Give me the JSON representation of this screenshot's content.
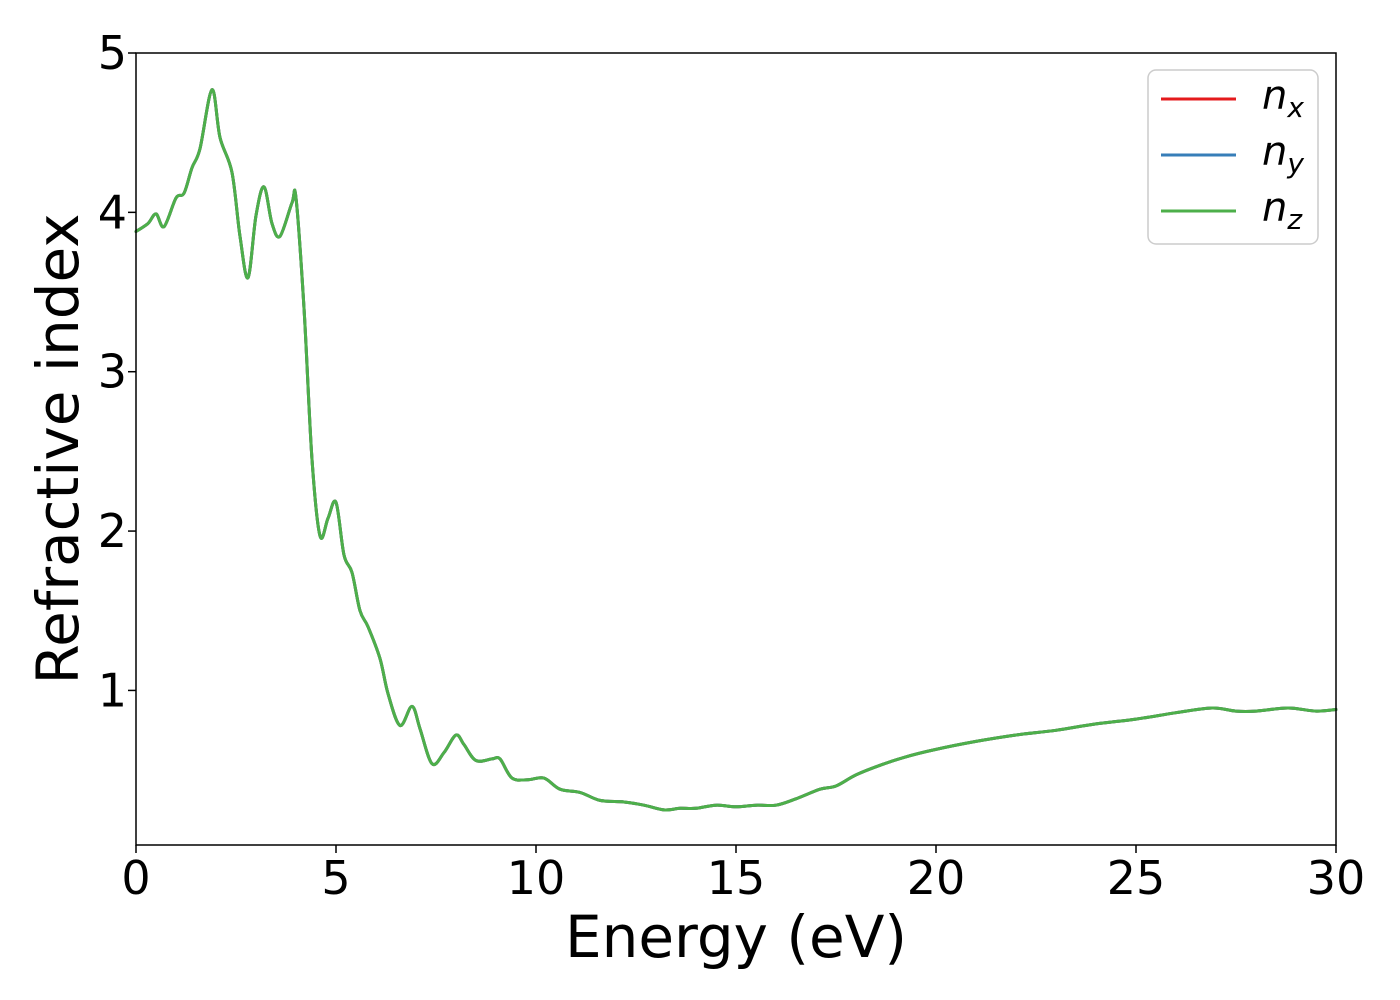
{
  "chart_data": {
    "type": "line",
    "xlabel": "Energy (eV)",
    "ylabel": "Refractive index",
    "xlim": [
      0,
      30
    ],
    "ylim": [
      0.03,
      5
    ],
    "xticks": [
      0,
      5,
      10,
      15,
      20,
      25,
      30
    ],
    "yticks": [
      1,
      2,
      3,
      4,
      5
    ],
    "grid": false,
    "legend_position": "top-right",
    "legend": [
      {
        "base": "n",
        "sub": "x",
        "color": "#e41a1c"
      },
      {
        "base": "n",
        "sub": "y",
        "color": "#377eb8"
      },
      {
        "base": "n",
        "sub": "z",
        "color": "#4daf4a"
      }
    ],
    "x": [
      0,
      0.3,
      0.5,
      0.7,
      1.0,
      1.2,
      1.4,
      1.6,
      1.9,
      2.1,
      2.4,
      2.6,
      2.8,
      3.0,
      3.2,
      3.4,
      3.6,
      3.9,
      4.0,
      4.2,
      4.4,
      4.6,
      4.8,
      5.0,
      5.2,
      5.4,
      5.6,
      5.8,
      6.1,
      6.3,
      6.6,
      6.9,
      7.1,
      7.4,
      7.7,
      8.0,
      8.2,
      8.5,
      8.9,
      9.1,
      9.4,
      9.8,
      10.2,
      10.6,
      11.1,
      11.6,
      12.2,
      12.7,
      13.2,
      13.6,
      14.0,
      14.5,
      15.0,
      15.5,
      16.0,
      16.5,
      17.1,
      17.5,
      18.0,
      18.6,
      19.2,
      20.0,
      21.0,
      22.0,
      23.0,
      24.0,
      25.0,
      26.0,
      26.9,
      27.5,
      28.0,
      28.8,
      29.5,
      30.0
    ],
    "series": [
      {
        "values": [
          3.88,
          3.93,
          3.99,
          3.91,
          4.09,
          4.12,
          4.28,
          4.4,
          4.77,
          4.47,
          4.25,
          3.85,
          3.59,
          3.98,
          4.16,
          3.93,
          3.85,
          4.06,
          4.09,
          3.4,
          2.45,
          1.97,
          2.08,
          2.18,
          1.85,
          1.74,
          1.5,
          1.4,
          1.2,
          0.98,
          0.78,
          0.9,
          0.76,
          0.54,
          0.61,
          0.72,
          0.66,
          0.56,
          0.57,
          0.57,
          0.45,
          0.44,
          0.45,
          0.38,
          0.36,
          0.31,
          0.3,
          0.28,
          0.25,
          0.26,
          0.26,
          0.28,
          0.27,
          0.28,
          0.28,
          0.32,
          0.38,
          0.4,
          0.47,
          0.53,
          0.58,
          0.63,
          0.68,
          0.72,
          0.75,
          0.79,
          0.82,
          0.86,
          0.89,
          0.87,
          0.87,
          0.89,
          0.87,
          0.88
        ]
      },
      {
        "values": [
          3.88,
          3.93,
          3.99,
          3.91,
          4.09,
          4.12,
          4.28,
          4.4,
          4.77,
          4.47,
          4.25,
          3.85,
          3.59,
          3.98,
          4.16,
          3.93,
          3.85,
          4.06,
          4.09,
          3.4,
          2.45,
          1.97,
          2.08,
          2.18,
          1.85,
          1.74,
          1.5,
          1.4,
          1.2,
          0.98,
          0.78,
          0.9,
          0.76,
          0.54,
          0.61,
          0.72,
          0.66,
          0.56,
          0.57,
          0.57,
          0.45,
          0.44,
          0.45,
          0.38,
          0.36,
          0.31,
          0.3,
          0.28,
          0.25,
          0.26,
          0.26,
          0.28,
          0.27,
          0.28,
          0.28,
          0.32,
          0.38,
          0.4,
          0.47,
          0.53,
          0.58,
          0.63,
          0.68,
          0.72,
          0.75,
          0.79,
          0.82,
          0.86,
          0.89,
          0.87,
          0.87,
          0.89,
          0.87,
          0.88
        ]
      },
      {
        "values": [
          3.88,
          3.93,
          3.99,
          3.91,
          4.09,
          4.12,
          4.28,
          4.4,
          4.77,
          4.47,
          4.25,
          3.85,
          3.59,
          3.98,
          4.16,
          3.93,
          3.85,
          4.06,
          4.09,
          3.4,
          2.45,
          1.97,
          2.08,
          2.18,
          1.85,
          1.74,
          1.5,
          1.4,
          1.2,
          0.98,
          0.78,
          0.9,
          0.76,
          0.54,
          0.61,
          0.72,
          0.66,
          0.56,
          0.57,
          0.57,
          0.45,
          0.44,
          0.45,
          0.38,
          0.36,
          0.31,
          0.3,
          0.28,
          0.25,
          0.26,
          0.26,
          0.28,
          0.27,
          0.28,
          0.28,
          0.32,
          0.38,
          0.4,
          0.47,
          0.53,
          0.58,
          0.63,
          0.68,
          0.72,
          0.75,
          0.79,
          0.82,
          0.86,
          0.89,
          0.87,
          0.87,
          0.89,
          0.87,
          0.88
        ]
      }
    ]
  }
}
